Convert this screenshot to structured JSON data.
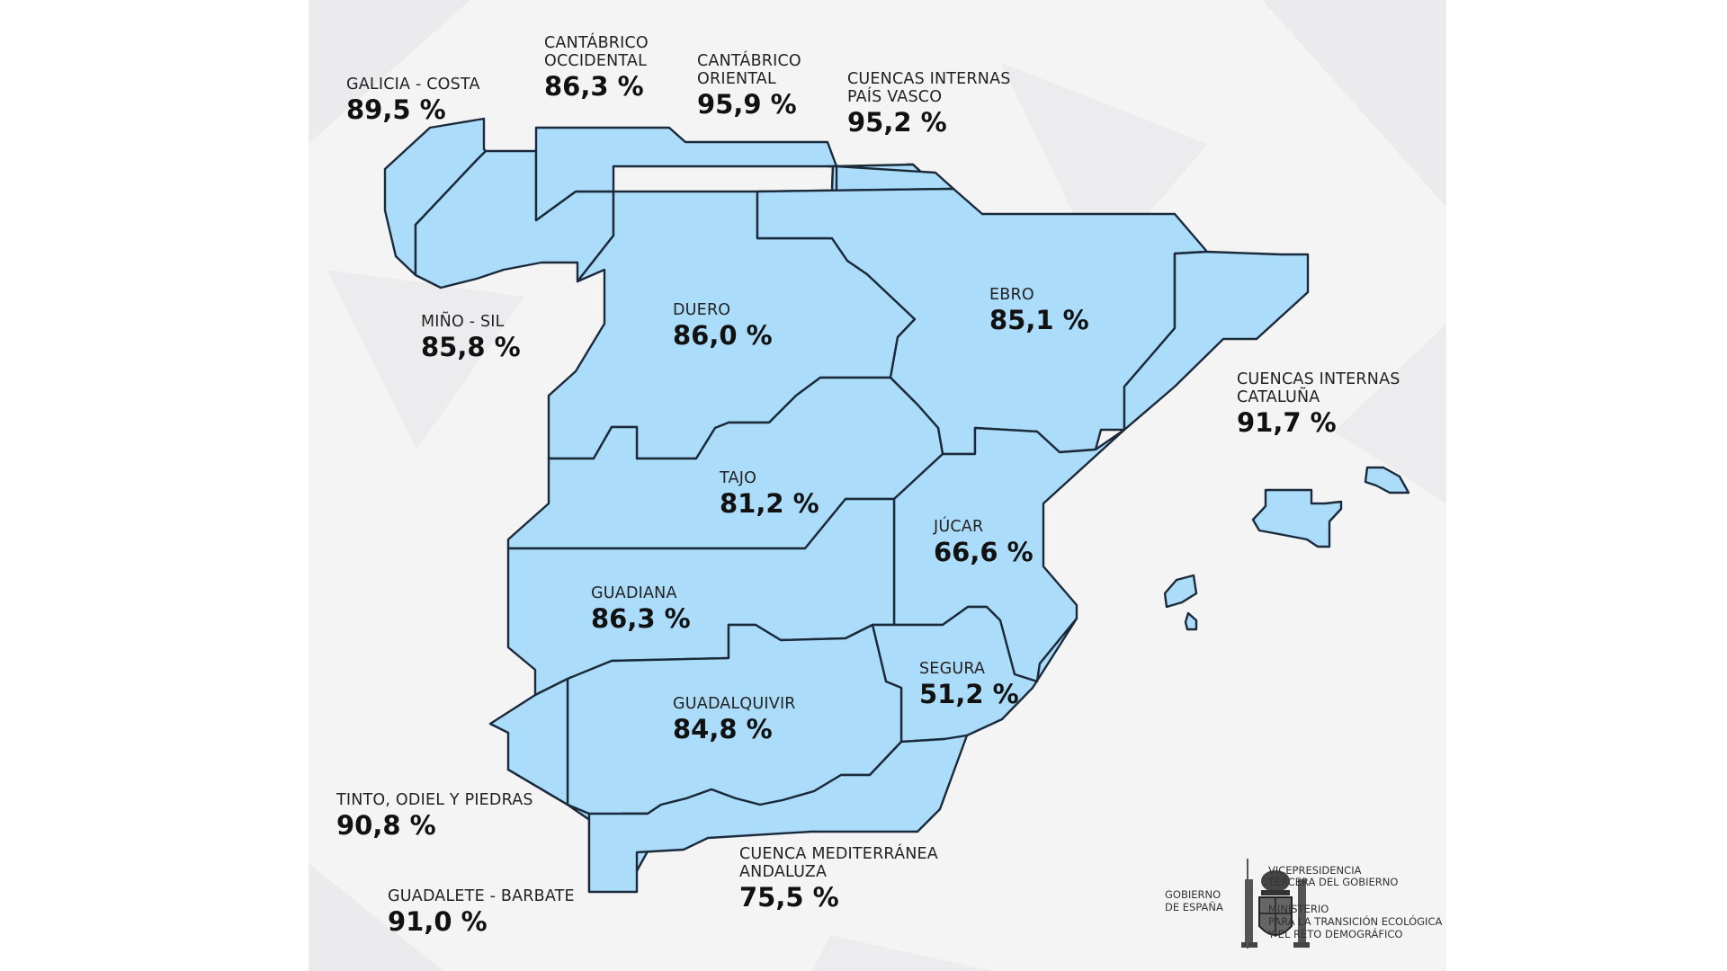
{
  "basins": [
    {
      "id": "galicia-costa",
      "name": "GALICIA - COSTA",
      "value": "89,5 %"
    },
    {
      "id": "cantabrico-occidental",
      "name": "CANTÁBRICO\nOCCIDENTAL",
      "value": "86,3 %"
    },
    {
      "id": "cantabrico-oriental",
      "name": "CANTÁBRICO\nORIENTAL",
      "value": "95,9 %"
    },
    {
      "id": "cuencas-internas-pais-vasco",
      "name": "CUENCAS INTERNAS\nPAÍS VASCO",
      "value": "95,2 %"
    },
    {
      "id": "mino-sil",
      "name": "MIÑO - SIL",
      "value": "85,8 %"
    },
    {
      "id": "duero",
      "name": "DUERO",
      "value": "86,0 %"
    },
    {
      "id": "ebro",
      "name": "EBRO",
      "value": "85,1 %"
    },
    {
      "id": "cuencas-internas-cataluna",
      "name": "CUENCAS INTERNAS\nCATALUÑA",
      "value": "91,7 %"
    },
    {
      "id": "tajo",
      "name": "TAJO",
      "value": "81,2 %"
    },
    {
      "id": "jucar",
      "name": "JÚCAR",
      "value": "66,6 %"
    },
    {
      "id": "guadiana",
      "name": "GUADIANA",
      "value": "86,3 %"
    },
    {
      "id": "segura",
      "name": "SEGURA",
      "value": "51,2 %"
    },
    {
      "id": "guadalquivir",
      "name": "GUADALQUIVIR",
      "value": "84,8 %"
    },
    {
      "id": "tinto-odiel-piedras",
      "name": "TINTO, ODIEL Y PIEDRAS",
      "value": "90,8 %"
    },
    {
      "id": "guadalete-barbate",
      "name": "GUADALETE - BARBATE",
      "value": "91,0 %"
    },
    {
      "id": "cuenca-mediterranea-andaluza",
      "name": "CUENCA MEDITERRÁNEA\nANDALUZA",
      "value": "75,5 %"
    }
  ],
  "colors": {
    "region_fill": "#abdcfa",
    "region_stroke": "#1b2a3a",
    "background": "#f4f4f5"
  },
  "footer": {
    "government": "GOBIERNO\nDE ESPAÑA",
    "vicepresidency": "VICEPRESIDENCIA\nTERCERA DEL GOBIERNO",
    "ministry": "MINISTERIO\nPARA LA TRANSICIÓN ECOLÓGICA\nY EL RETO DEMOGRÁFICO"
  }
}
